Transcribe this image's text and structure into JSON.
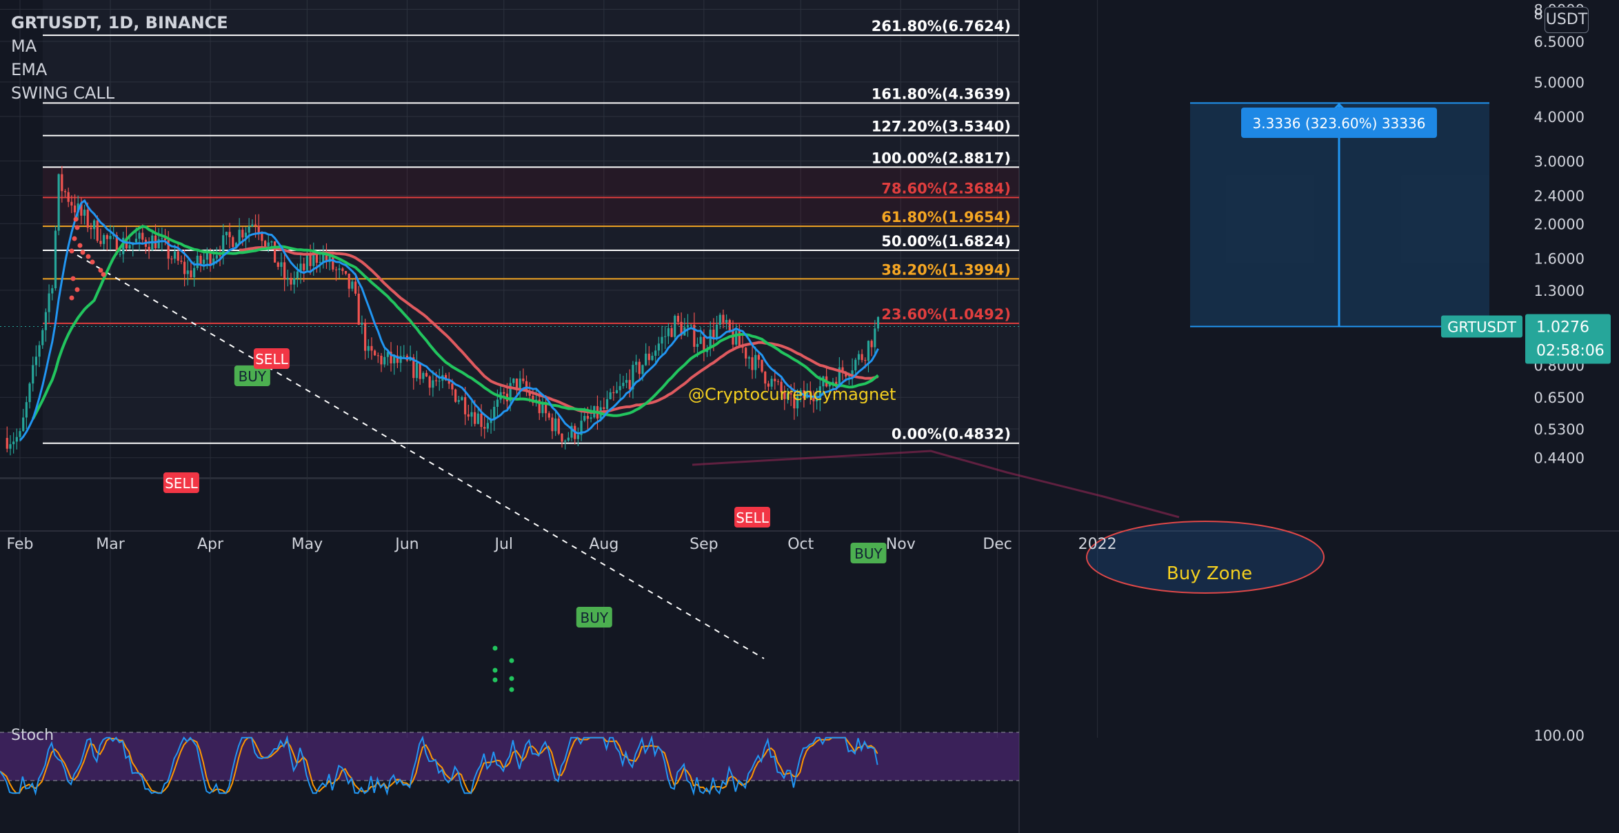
{
  "legend": {
    "title": "GRTUSDT, 1D, BINANCE",
    "indicators": [
      "MA",
      "EMA",
      "SWING CALL"
    ]
  },
  "stoch_label": "Stoch",
  "currency_button": "USDT",
  "watermark": "@Cryptocurrencymagnet",
  "measure_label": "3.3336 (323.60%) 33336",
  "buy_zone_label": "Buy Zone",
  "price_tag": {
    "symbol": "GRTUSDT",
    "price": "1.0276",
    "countdown": "02:58:06"
  },
  "colors": {
    "background": "#131722",
    "grid": "#2a2e39",
    "up_candle": "#26a69a",
    "down_candle": "#ef5350",
    "ma_line": "#e05a5f",
    "ema_line": "#2196f3",
    "swing_line": "#22c55e",
    "stoch_k": "#2196f3",
    "stoch_d": "#ff9800",
    "stoch_band": "#5b2a86",
    "buy_marker": "#4caf50",
    "sell_marker": "#f23645",
    "measure": "#2196f3",
    "price_tag": "#26a69a"
  },
  "chart_data": {
    "type": "candlestick",
    "symbol": "GRTUSDT",
    "timeframe": "1D",
    "exchange": "BINANCE",
    "y_scale": "log",
    "y_tick_labels": [
      "8.0000",
      "6.5000",
      "5.0000",
      "4.0000",
      "3.0000",
      "2.4000",
      "2.0000",
      "1.6000",
      "1.3000",
      "0.8000",
      "0.6500",
      "0.5300",
      "0.4400"
    ],
    "y_ticks": [
      8.0,
      6.5,
      5.0,
      4.0,
      3.0,
      2.4,
      2.0,
      1.6,
      1.3,
      0.8,
      0.65,
      0.53,
      0.44
    ],
    "x_tick_labels": [
      "Feb",
      "Mar",
      "Apr",
      "May",
      "Jun",
      "Jul",
      "Aug",
      "Sep",
      "Oct",
      "Nov",
      "Dec",
      "2022"
    ],
    "x_ticks": [
      "2021-02-01",
      "2021-03-01",
      "2021-04-01",
      "2021-05-01",
      "2021-06-01",
      "2021-07-01",
      "2021-08-01",
      "2021-09-01",
      "2021-10-01",
      "2021-11-01",
      "2021-12-01",
      "2022-01-01"
    ],
    "ohlc_sample": [
      {
        "date": "2021-02-01",
        "close": 0.5
      },
      {
        "date": "2021-02-11",
        "close": 1.4
      },
      {
        "date": "2021-02-13",
        "close": 2.6
      },
      {
        "date": "2021-02-20",
        "close": 2.1
      },
      {
        "date": "2021-03-01",
        "close": 1.75
      },
      {
        "date": "2021-03-15",
        "close": 1.8
      },
      {
        "date": "2021-03-25",
        "close": 1.45
      },
      {
        "date": "2021-04-05",
        "close": 1.75
      },
      {
        "date": "2021-04-15",
        "close": 2.05
      },
      {
        "date": "2021-04-25",
        "close": 1.35
      },
      {
        "date": "2021-05-05",
        "close": 1.65
      },
      {
        "date": "2021-05-15",
        "close": 1.3
      },
      {
        "date": "2021-05-20",
        "close": 0.85
      },
      {
        "date": "2021-06-01",
        "close": 0.8
      },
      {
        "date": "2021-06-15",
        "close": 0.68
      },
      {
        "date": "2021-06-25",
        "close": 0.55
      },
      {
        "date": "2021-07-05",
        "close": 0.72
      },
      {
        "date": "2021-07-20",
        "close": 0.5
      },
      {
        "date": "2021-08-01",
        "close": 0.6
      },
      {
        "date": "2021-08-15",
        "close": 0.85
      },
      {
        "date": "2021-08-23",
        "close": 1.05
      },
      {
        "date": "2021-09-01",
        "close": 0.92
      },
      {
        "date": "2021-09-06",
        "close": 1.05
      },
      {
        "date": "2021-09-15",
        "close": 0.85
      },
      {
        "date": "2021-09-28",
        "close": 0.62
      },
      {
        "date": "2021-10-10",
        "close": 0.72
      },
      {
        "date": "2021-10-20",
        "close": 0.85
      },
      {
        "date": "2021-10-25",
        "close": 1.0276
      }
    ],
    "fibonacci_levels": [
      {
        "label": "261.80%(6.7624)",
        "value": 6.7624
      },
      {
        "label": "161.80%(4.3639)",
        "value": 4.3639
      },
      {
        "label": "127.20%(3.5340)",
        "value": 3.534
      },
      {
        "label": "100.00%(2.8817)",
        "value": 2.8817
      },
      {
        "label": "78.60%(2.3684)",
        "value": 2.3684
      },
      {
        "label": "61.80%(1.9654)",
        "value": 1.9654
      },
      {
        "label": "50.00%(1.6824)",
        "value": 1.6824
      },
      {
        "label": "38.20%(1.3994)",
        "value": 1.3994
      },
      {
        "label": "23.60%(1.0492)",
        "value": 1.0492
      },
      {
        "label": "0.00%(0.4832)",
        "value": 0.4832
      }
    ],
    "signals": [
      {
        "type": "SELL",
        "date": "2021-03-23"
      },
      {
        "type": "BUY",
        "date": "2021-04-14"
      },
      {
        "type": "SELL",
        "date": "2021-04-20"
      },
      {
        "type": "BUY",
        "date": "2021-07-29"
      },
      {
        "type": "SELL",
        "date": "2021-09-16"
      },
      {
        "type": "BUY",
        "date": "2021-10-22"
      }
    ],
    "last_price": 1.0276,
    "stoch": {
      "label": "Stoch",
      "upper_tick": "100.00",
      "band": [
        20,
        80
      ]
    }
  }
}
